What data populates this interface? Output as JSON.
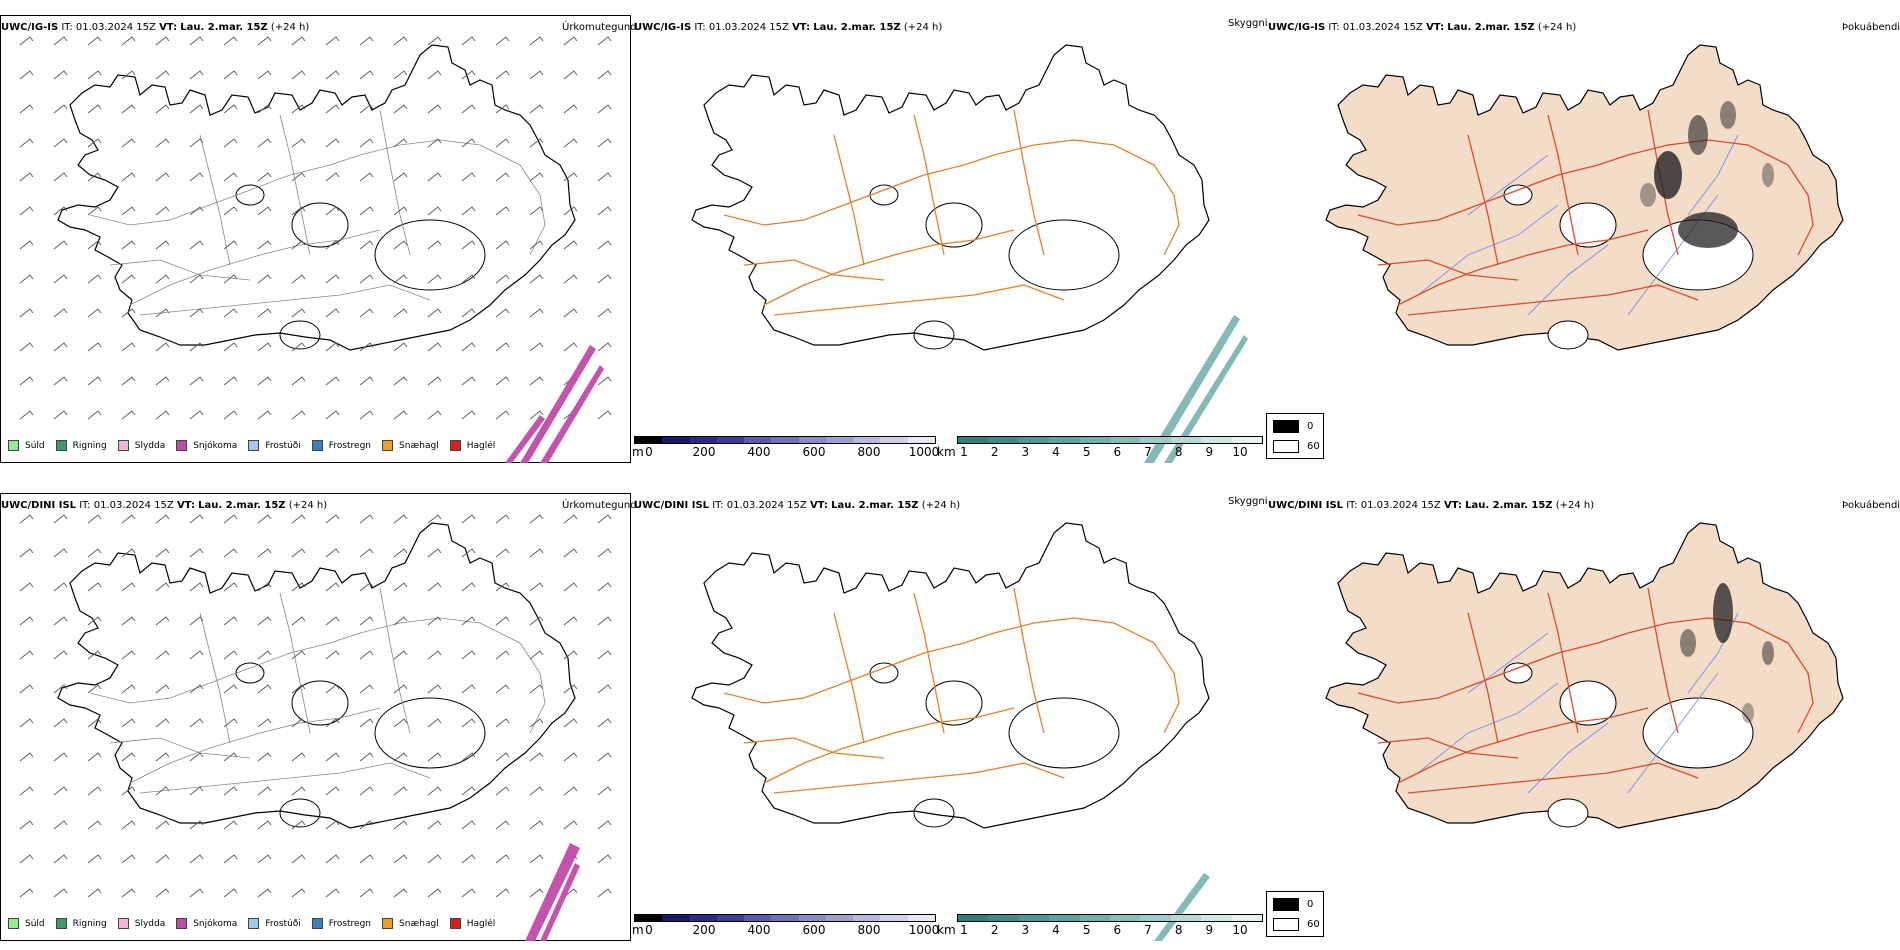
{
  "rows": [
    {
      "model": "UWC/IG-IS",
      "it_label": "IT:",
      "it_value": "01.03.2024 15Z",
      "vt_label": "VT:",
      "vt_value": "Lau. 2.mar. 15Z",
      "lead": "(+24 h)"
    },
    {
      "model": "UWC/DINI ISL",
      "it_label": "IT:",
      "it_value": "01.03.2024 15Z",
      "vt_label": "VT:",
      "vt_value": "Lau. 2.mar. 15Z",
      "lead": "(+24 h)"
    }
  ],
  "fields": {
    "precip": "Úrkomutegund",
    "ceiling": "Skyggni",
    "fog": "Þokuábendi"
  },
  "precip_legend": [
    {
      "label": "Súld",
      "color": "#90ee90"
    },
    {
      "label": "Rigning",
      "color": "#3c9a6a"
    },
    {
      "label": "Slydda",
      "color": "#f4b6d2"
    },
    {
      "label": "Snjókoma",
      "color": "#c04aa8"
    },
    {
      "label": "Frostúði",
      "color": "#9ec9f0"
    },
    {
      "label": "Frostregn",
      "color": "#3b7fc4"
    },
    {
      "label": "Snæhagl",
      "color": "#f39c1e"
    },
    {
      "label": "Haglél",
      "color": "#e01b1b"
    }
  ],
  "elevation_bar": {
    "unit": "m",
    "ticks": [
      "0",
      "200",
      "400",
      "600",
      "800",
      "1000"
    ],
    "colors": [
      "#000000",
      "#1a1a66",
      "#2a2a8c",
      "#3d3d9e",
      "#5a5aae",
      "#7070b8",
      "#8a8ac4",
      "#a0a0d0",
      "#b8b8dc",
      "#d0d0e8",
      "#e8e8f4"
    ]
  },
  "visibility_bar": {
    "unit": "km",
    "ticks": [
      "1",
      "2",
      "3",
      "4",
      "5",
      "6",
      "7",
      "8",
      "9",
      "10"
    ],
    "colors": [
      "#2f7f7d",
      "#3f8b89",
      "#4f9795",
      "#5fa3a1",
      "#72b0ae",
      "#88bdbb",
      "#9ecac8",
      "#b6d8d6",
      "#cfe6e4",
      "#e8f3f2"
    ]
  },
  "fog_legend": {
    "high": "0",
    "low": "60",
    "high_color": "#000000",
    "low_color": "#ffffff"
  },
  "colors": {
    "land_fog": "#f3dcc8",
    "roads": "#e8802a",
    "roads_red": "#e04a2a",
    "rivers": "#7a8ef0",
    "coast": "#000000",
    "snow_band": "#c04aa8",
    "vis_band": "#4f9e9b"
  }
}
